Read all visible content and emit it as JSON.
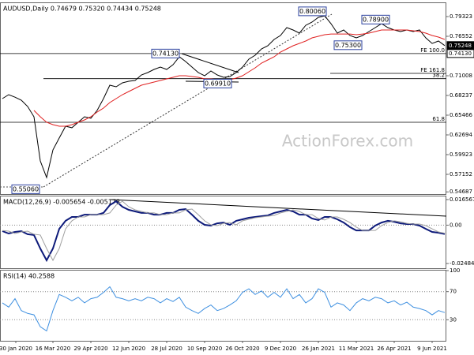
{
  "chart_data": [
    {
      "type": "line",
      "title": "AUDUSD,Daily  0.74679 0.75320 0.74434 0.75248",
      "watermark": "ActionForex.com",
      "xlim": [
        -0.375,
        70.25
      ],
      "ylim": [
        0.5438,
        0.8121
      ],
      "yticks": [
        {
          "value": 0.79323,
          "label": "0.79323"
        },
        0.76552,
        0.71008,
        0.68237,
        0.65466,
        0.62694,
        0.59923,
        0.57152,
        0.54687
      ],
      "axis_markers": [
        {
          "value": 0.75248,
          "label": "0.75248"
        },
        {
          "value": 0.7413,
          "label": "0.74130"
        }
      ],
      "levels": [
        {
          "value": 0.7413,
          "label": "FE 100.0"
        },
        {
          "value": 0.7134,
          "label": "FE 161.8"
        },
        {
          "value": 0.706,
          "label": "38.2"
        },
        {
          "value": 0.6447,
          "label": "61.8"
        }
      ],
      "annotations": [
        {
          "value": 0.8006,
          "label": "0.80060"
        },
        {
          "value": 0.789,
          "label": "0.78900"
        },
        {
          "value": 0.753,
          "label": "0.75300"
        },
        {
          "value": 0.7413,
          "label": "0.74130"
        },
        {
          "value": 0.6991,
          "label": "0.69910"
        },
        {
          "value": 0.5506,
          "label": "0.55060"
        }
      ],
      "series": [
        {
          "color": "#000000",
          "values": [
            0.678,
            0.6835,
            0.68,
            0.6757,
            0.6669,
            0.6525,
            0.5904,
            0.5671,
            0.6059,
            0.6226,
            0.6392,
            0.637,
            0.6447,
            0.6525,
            0.6503,
            0.6614,
            0.678,
            0.6968,
            0.6946,
            0.7001,
            0.7023,
            0.7035,
            0.7112,
            0.7145,
            0.719,
            0.7223,
            0.719,
            0.7256,
            0.7367,
            0.7301,
            0.7223,
            0.7145,
            0.7101,
            0.7167,
            0.7112,
            0.7079,
            0.709,
            0.7145,
            0.7223,
            0.7334,
            0.7389,
            0.7478,
            0.7522,
            0.7611,
            0.7666,
            0.7777,
            0.7744,
            0.77,
            0.781,
            0.7855,
            0.7921,
            0.7943,
            0.7833,
            0.77,
            0.7744,
            0.7666,
            0.7633,
            0.7666,
            0.7722,
            0.7777,
            0.7833,
            0.7777,
            0.7744,
            0.7722,
            0.7744,
            0.7722,
            0.7744,
            0.7633,
            0.7555,
            0.7589,
            0.7525
          ]
        },
        {
          "color": "#e02020",
          "values": [
            null,
            null,
            null,
            null,
            null,
            0.6613,
            0.6525,
            0.6447,
            0.6414,
            0.6392,
            0.6392,
            0.6414,
            0.6447,
            0.648,
            0.6525,
            0.6591,
            0.6647,
            0.6724,
            0.678,
            0.6835,
            0.6879,
            0.6924,
            0.6968,
            0.699,
            0.7012,
            0.7035,
            0.7057,
            0.7079,
            0.7101,
            0.7101,
            0.709,
            0.7079,
            0.7057,
            0.7057,
            0.7046,
            0.7035,
            0.7046,
            0.7068,
            0.7101,
            0.7156,
            0.7212,
            0.7278,
            0.7323,
            0.7367,
            0.7434,
            0.7478,
            0.7522,
            0.7556,
            0.7589,
            0.7633,
            0.7655,
            0.7677,
            0.7688,
            0.7688,
            0.7688,
            0.7688,
            0.7677,
            0.7688,
            0.77,
            0.7722,
            0.7744,
            0.7744,
            0.7744,
            0.7744,
            0.7744,
            0.7733,
            0.7722,
            0.77,
            0.7666,
            0.7644,
            0.7611
          ]
        }
      ]
    },
    {
      "type": "line",
      "title": "MACD(12,26,9) -0.005654 -0.005178",
      "xlim": [
        -0.375,
        70.25
      ],
      "ylim": [
        -0.0279,
        0.0186
      ],
      "yticks": [
        0.016567,
        {
          "value": 0,
          "label": "0.00"
        },
        -0.024847
      ],
      "guides": [
        0
      ],
      "series": [
        {
          "color": "#0d1a7a",
          "values": [
            -0.0039,
            -0.0054,
            -0.0044,
            -0.0039,
            -0.0059,
            -0.0064,
            -0.0151,
            -0.0228,
            -0.0151,
            -0.0024,
            0.0028,
            0.0053,
            0.0053,
            0.0068,
            0.0068,
            0.0068,
            0.0079,
            0.013,
            0.0155,
            0.0119,
            0.0099,
            0.0089,
            0.0079,
            0.0079,
            0.0068,
            0.0068,
            0.0079,
            0.0079,
            0.0099,
            0.0104,
            0.0068,
            0.0028,
            0.0002,
            -0.0003,
            0.0012,
            0.0017,
            0.0002,
            0.0028,
            0.0038,
            0.0048,
            0.0053,
            0.0058,
            0.0063,
            0.0079,
            0.0089,
            0.0099,
            0.0089,
            0.0068,
            0.0068,
            0.0043,
            0.0033,
            0.0053,
            0.0053,
            0.0038,
            0.0017,
            -0.0013,
            -0.0034,
            -0.0034,
            -0.0034,
            -0.0003,
            0.0017,
            0.0028,
            0.0022,
            0.0012,
            0.0007,
            0.0007,
            -0.0003,
            -0.0024,
            -0.0044,
            -0.0049,
            -0.0057
          ]
        },
        {
          "color": "#a0a0a0",
          "values": [
            -0.0035,
            -0.0039,
            -0.0054,
            -0.0044,
            -0.0039,
            -0.0059,
            -0.0064,
            -0.0151,
            -0.0228,
            -0.0151,
            -0.0024,
            0.0028,
            0.0053,
            0.0053,
            0.0068,
            0.0068,
            0.0068,
            0.0079,
            0.013,
            0.0155,
            0.0119,
            0.0099,
            0.0089,
            0.0079,
            0.0079,
            0.0068,
            0.0068,
            0.0079,
            0.0079,
            0.0099,
            0.0104,
            0.0068,
            0.0028,
            0.0002,
            -0.0003,
            0.0012,
            0.0017,
            0.0002,
            0.0028,
            0.0038,
            0.0048,
            0.0053,
            0.0058,
            0.0063,
            0.0079,
            0.0089,
            0.0099,
            0.0089,
            0.0068,
            0.0068,
            0.0043,
            0.0033,
            0.0053,
            0.0053,
            0.0038,
            0.0017,
            -0.0013,
            -0.0034,
            -0.0034,
            -0.0034,
            -0.0003,
            0.0017,
            0.0028,
            0.0022,
            0.0012,
            0.0007,
            0.0007,
            -0.0003,
            -0.0024,
            -0.0044,
            -0.0052
          ]
        }
      ]
    },
    {
      "type": "line",
      "title": "RSI(14) 40.2588",
      "xlim": [
        -0.375,
        70.25
      ],
      "ylim": [
        0,
        100
      ],
      "yticks": [
        100,
        70,
        30
      ],
      "guides": [
        70,
        30
      ],
      "xticks": [
        {
          "value": 2.125,
          "label": "30 Jan 2020"
        },
        {
          "value": 8,
          "label": "16 Mar 2020"
        },
        {
          "value": 14,
          "label": "29 Apr 2020"
        },
        {
          "value": 20,
          "label": "12 Jun 2020"
        },
        {
          "value": 26,
          "label": "28 Jul 2020"
        },
        {
          "value": 32,
          "label": "10 Sep 2020"
        },
        {
          "value": 38,
          "label": "26 Oct 2020"
        },
        {
          "value": 44,
          "label": "9 Dec 2020"
        },
        {
          "value": 50,
          "label": "26 Jan 2021"
        },
        {
          "value": 56,
          "label": "11 Mar 2021"
        },
        {
          "value": 62,
          "label": "26 Apr 2021"
        },
        {
          "value": 68,
          "label": "9 Jun 2021"
        }
      ],
      "series": [
        {
          "color": "#3d8fe0",
          "values": [
            54,
            48,
            60,
            43,
            39,
            37,
            20,
            14,
            43,
            66,
            62,
            57,
            62,
            54,
            60,
            62,
            69,
            77,
            62,
            60,
            57,
            60,
            57,
            62,
            60,
            54,
            60,
            56,
            62,
            48,
            43,
            39,
            46,
            51,
            43,
            46,
            51,
            57,
            69,
            74,
            66,
            71,
            62,
            69,
            62,
            74,
            60,
            66,
            54,
            60,
            74,
            69,
            48,
            54,
            51,
            43,
            54,
            60,
            57,
            62,
            60,
            54,
            57,
            51,
            55,
            48,
            46,
            43,
            37,
            43,
            40.26
          ]
        }
      ]
    }
  ]
}
